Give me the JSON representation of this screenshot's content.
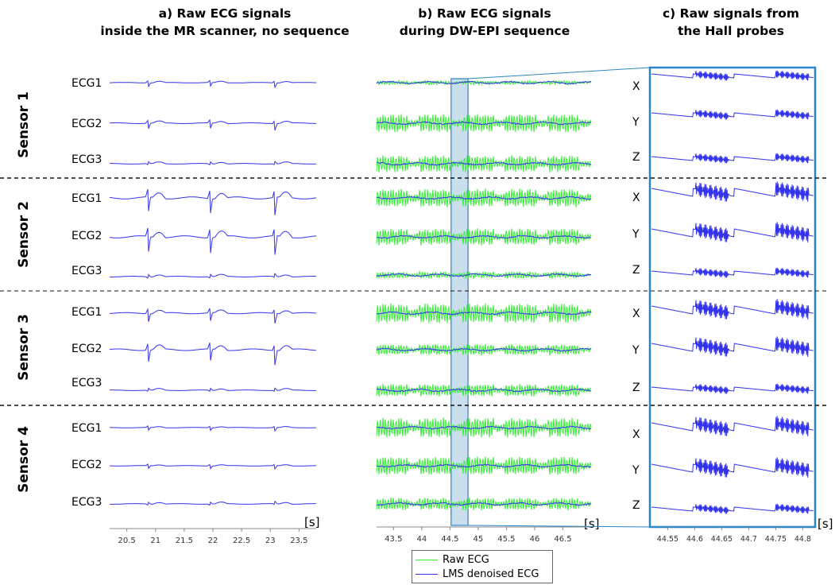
{
  "titles": {
    "a_line1": "a) Raw ECG signals",
    "a_line2": "inside the MR scanner, no sequence",
    "b_line1": "b) Raw ECG signals",
    "b_line2": "during DW-EPI sequence",
    "c_line1": "c) Raw signals from",
    "c_line2": "the Hall probes"
  },
  "sensors": [
    "Sensor 1",
    "Sensor 2",
    "Sensor 3",
    "Sensor 4"
  ],
  "ecg_labels": [
    "ECG1",
    "ECG2",
    "ECG3"
  ],
  "hall_labels": [
    "X",
    "Y",
    "Z"
  ],
  "unit": "[s]",
  "legend": {
    "raw": "Raw ECG",
    "lms": "LMS denoised ECG"
  },
  "colors": {
    "raw": "#33ee33",
    "lms": "#3333ee",
    "box": "#2a86c8",
    "highlight": "#a8c8e0"
  },
  "chart_data": [
    {
      "type": "line",
      "panel": "a",
      "xlim": [
        20.2,
        23.8
      ],
      "xticks": [
        20.5,
        21,
        21.5,
        22,
        22.5,
        23,
        23.5
      ],
      "beats_s": [
        20.87,
        21.95,
        23.08
      ],
      "series": [
        {
          "name": "ECG1",
          "sensor": 1
        },
        {
          "name": "ECG2",
          "sensor": 1
        },
        {
          "name": "ECG3",
          "sensor": 1
        },
        {
          "name": "ECG1",
          "sensor": 2
        },
        {
          "name": "ECG2",
          "sensor": 2
        },
        {
          "name": "ECG3",
          "sensor": 2
        },
        {
          "name": "ECG1",
          "sensor": 3
        },
        {
          "name": "ECG2",
          "sensor": 3
        },
        {
          "name": "ECG3",
          "sensor": 3
        },
        {
          "name": "ECG1",
          "sensor": 4
        },
        {
          "name": "ECG2",
          "sensor": 4
        },
        {
          "name": "ECG3",
          "sensor": 4
        }
      ]
    },
    {
      "type": "line",
      "panel": "b",
      "xlim": [
        43.2,
        47.0
      ],
      "xticks": [
        43.5,
        44,
        44.5,
        45,
        45.5,
        46,
        46.5
      ],
      "highlight_s": [
        44.52,
        44.82
      ],
      "legend": [
        "Raw ECG",
        "LMS denoised ECG"
      ]
    },
    {
      "type": "line",
      "panel": "c",
      "xlim": [
        44.52,
        44.82
      ],
      "xticks": [
        44.55,
        44.6,
        44.65,
        44.7,
        44.75,
        44.8
      ],
      "series": [
        "X",
        "Y",
        "Z"
      ]
    }
  ]
}
